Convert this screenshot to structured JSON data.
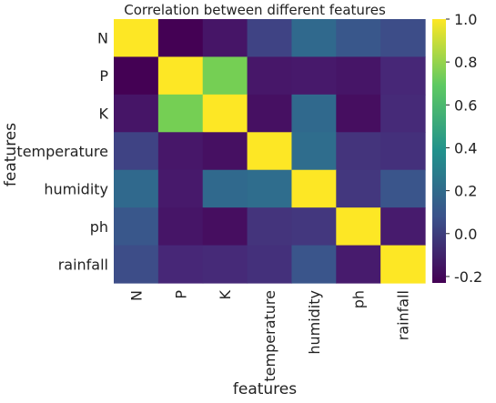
{
  "chart_data": {
    "type": "heatmap",
    "title": "Correlation between different features",
    "xlabel": "features",
    "ylabel": "features",
    "rows": [
      "N",
      "P",
      "K",
      "temperature",
      "humidity",
      "ph",
      "rainfall"
    ],
    "columns": [
      "N",
      "P",
      "K",
      "temperature",
      "humidity",
      "ph",
      "rainfall"
    ],
    "values": [
      [
        1.0,
        -0.23,
        -0.14,
        0.03,
        0.19,
        0.1,
        0.06
      ],
      [
        -0.23,
        1.0,
        0.74,
        -0.13,
        -0.12,
        -0.14,
        -0.06
      ],
      [
        -0.14,
        0.74,
        1.0,
        -0.16,
        0.19,
        -0.17,
        -0.05
      ],
      [
        0.03,
        -0.13,
        -0.16,
        1.0,
        0.21,
        -0.02,
        -0.03
      ],
      [
        0.19,
        -0.12,
        0.19,
        0.21,
        1.0,
        -0.01,
        0.09
      ],
      [
        0.1,
        -0.14,
        -0.17,
        -0.02,
        -0.01,
        1.0,
        -0.11
      ],
      [
        0.06,
        -0.06,
        -0.05,
        -0.03,
        0.09,
        -0.11,
        1.0
      ]
    ],
    "colormap": "viridis",
    "vmin": -0.23,
    "vmax": 1.0,
    "colorbar_ticks": [
      "1.0",
      "0.8",
      "0.6",
      "0.4",
      "0.2",
      "0.0",
      "-0.2"
    ],
    "colorbar_tick_values": [
      1.0,
      0.8,
      0.6,
      0.4,
      0.2,
      0.0,
      -0.2
    ],
    "grid": false
  }
}
